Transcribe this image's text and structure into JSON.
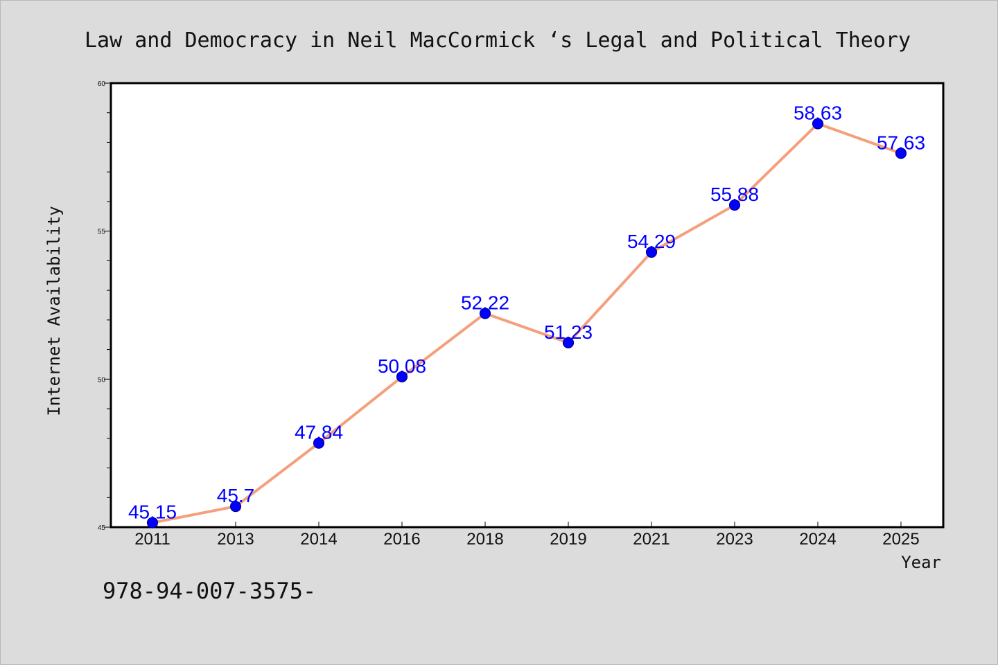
{
  "chart_data": {
    "type": "line",
    "title": "Law and Democracy in Neil MacCormick ‘s Legal and Political Theory",
    "xlabel": "Year",
    "ylabel": "Internet Availability",
    "categories": [
      "2011",
      "2013",
      "2014",
      "2016",
      "2018",
      "2019",
      "2021",
      "2023",
      "2024",
      "2025"
    ],
    "values": [
      45.15,
      45.7,
      47.84,
      50.08,
      52.22,
      51.23,
      54.29,
      55.88,
      58.63,
      57.63
    ],
    "data_labels": [
      "45.15",
      "45.7",
      "47.84",
      "50.08",
      "52.22",
      "51.23",
      "54.29",
      "55.88",
      "58.63",
      "57.63"
    ],
    "ylim": [
      45,
      60
    ],
    "yticks": [
      "45",
      "50",
      "55",
      "60"
    ],
    "grid": false,
    "colors": {
      "line": "#f4a07c",
      "marker": "#0000ff",
      "marker_edge": "#00008b",
      "data_label": "#0000ff",
      "background": "#dcdcdc",
      "plot_background": "#ffffff"
    }
  },
  "footer_text": "978-94-007-3575-"
}
